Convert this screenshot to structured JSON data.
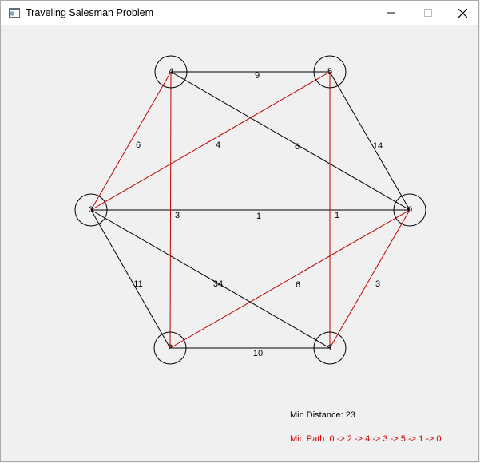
{
  "window": {
    "title": "Traveling Salesman Problem"
  },
  "colors": {
    "path": "#c00000",
    "edge": "#000000",
    "background": "#f0f0f0"
  },
  "icons": {
    "app": "window-app-icon",
    "minimize": "minimize-icon",
    "maximize": "maximize-icon",
    "close": "close-icon"
  },
  "graph": {
    "nodes": [
      {
        "id": "0",
        "label": "0"
      },
      {
        "id": "1",
        "label": "1"
      },
      {
        "id": "2",
        "label": "2"
      },
      {
        "id": "3",
        "label": "3"
      },
      {
        "id": "4",
        "label": "4"
      },
      {
        "id": "5",
        "label": "5"
      }
    ],
    "edges": [
      {
        "from": "4",
        "to": "5",
        "weight": "9",
        "on_path": false
      },
      {
        "from": "4",
        "to": "3",
        "weight": "6",
        "on_path": true
      },
      {
        "from": "3",
        "to": "5",
        "weight": "4",
        "on_path": true
      },
      {
        "from": "4",
        "to": "0",
        "weight": "6",
        "on_path": false
      },
      {
        "from": "5",
        "to": "0",
        "weight": "14",
        "on_path": false
      },
      {
        "from": "4",
        "to": "2",
        "weight": "3",
        "on_path": true
      },
      {
        "from": "3",
        "to": "0",
        "weight": "1",
        "on_path": false
      },
      {
        "from": "5",
        "to": "1",
        "weight": "1",
        "on_path": true
      },
      {
        "from": "3",
        "to": "2",
        "weight": "11",
        "on_path": false
      },
      {
        "from": "3",
        "to": "1",
        "weight": "34",
        "on_path": false
      },
      {
        "from": "2",
        "to": "0",
        "weight": "6",
        "on_path": true
      },
      {
        "from": "1",
        "to": "0",
        "weight": "3",
        "on_path": true
      },
      {
        "from": "2",
        "to": "1",
        "weight": "10",
        "on_path": false
      }
    ]
  },
  "results": {
    "min_distance": "Min Distance: 23",
    "min_path": "Min Path: 0 -> 2 -> 4 -> 3 -> 5 -> 1 -> 0"
  }
}
